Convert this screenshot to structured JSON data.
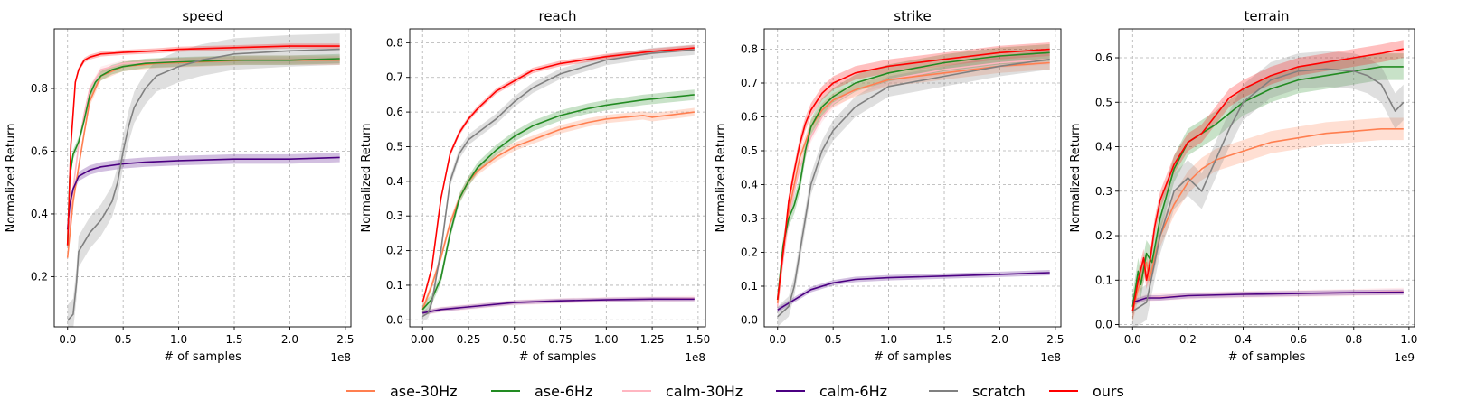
{
  "colors": {
    "ase-30Hz": "#ff7f50",
    "ase-6Hz": "#228b22",
    "calm-30Hz": "#ffb6c1",
    "calm-6Hz": "#4b0082",
    "scratch": "#808080",
    "ours": "#ff0000"
  },
  "legend": [
    "ase-30Hz",
    "ase-6Hz",
    "calm-30Hz",
    "calm-6Hz",
    "scratch",
    "ours"
  ],
  "chart_data": [
    {
      "type": "line",
      "title": "speed",
      "xlabel": "# of samples",
      "ylabel": "Normalized Return",
      "x_multiplier": "1e8",
      "xlim": [
        -0.12,
        2.55
      ],
      "ylim": [
        0.04,
        0.99
      ],
      "xticks": [
        0.0,
        0.5,
        1.0,
        1.5,
        2.0,
        2.5
      ],
      "xtick_labels": [
        "0.0",
        "0.5",
        "1.0",
        "1.5",
        "2.0",
        "2.5"
      ],
      "yticks": [
        0.2,
        0.4,
        0.6,
        0.8
      ],
      "ytick_labels": [
        "0.2",
        "0.4",
        "0.6",
        "0.8"
      ],
      "grid": true,
      "series": [
        {
          "name": "calm-30Hz",
          "band": 0.01,
          "x": [
            0,
            0.05,
            0.1,
            0.15,
            0.2,
            0.3,
            0.5,
            0.8,
            1.2,
            1.6,
            2.0,
            2.45
          ],
          "y": [
            0.3,
            0.48,
            0.62,
            0.72,
            0.8,
            0.86,
            0.88,
            0.885,
            0.89,
            0.89,
            0.89,
            0.89
          ]
        },
        {
          "name": "ase-30Hz",
          "band": 0.015,
          "x": [
            0,
            0.05,
            0.1,
            0.15,
            0.2,
            0.3,
            0.5,
            0.8,
            1.2,
            1.6,
            2.0,
            2.45
          ],
          "y": [
            0.26,
            0.44,
            0.55,
            0.66,
            0.76,
            0.84,
            0.87,
            0.88,
            0.885,
            0.89,
            0.89,
            0.89
          ]
        },
        {
          "name": "ase-6Hz",
          "band": 0.015,
          "x": [
            0,
            0.02,
            0.05,
            0.1,
            0.15,
            0.2,
            0.25,
            0.3,
            0.4,
            0.5,
            0.7,
            1.0,
            1.5,
            2.0,
            2.45
          ],
          "y": [
            0.3,
            0.52,
            0.59,
            0.63,
            0.7,
            0.78,
            0.82,
            0.84,
            0.86,
            0.87,
            0.88,
            0.885,
            0.89,
            0.89,
            0.895
          ]
        },
        {
          "name": "calm-6Hz",
          "band": 0.015,
          "x": [
            0,
            0.02,
            0.05,
            0.1,
            0.2,
            0.3,
            0.5,
            0.7,
            1.0,
            1.5,
            2.0,
            2.45
          ],
          "y": [
            0.35,
            0.43,
            0.48,
            0.52,
            0.54,
            0.55,
            0.56,
            0.565,
            0.57,
            0.575,
            0.575,
            0.58
          ]
        },
        {
          "name": "scratch",
          "band": 0.05,
          "x": [
            0,
            0.05,
            0.08,
            0.1,
            0.15,
            0.2,
            0.3,
            0.4,
            0.45,
            0.5,
            0.55,
            0.6,
            0.7,
            0.8,
            1.0,
            1.2,
            1.5,
            2.0,
            2.45
          ],
          "y": [
            0.06,
            0.08,
            0.18,
            0.28,
            0.31,
            0.34,
            0.38,
            0.44,
            0.5,
            0.6,
            0.68,
            0.74,
            0.8,
            0.84,
            0.87,
            0.89,
            0.91,
            0.92,
            0.925
          ]
        },
        {
          "name": "ours",
          "band": 0.008,
          "x": [
            0,
            0.03,
            0.07,
            0.1,
            0.15,
            0.2,
            0.3,
            0.5,
            0.8,
            1.0,
            1.5,
            2.0,
            2.45
          ],
          "y": [
            0.3,
            0.62,
            0.82,
            0.86,
            0.89,
            0.9,
            0.91,
            0.915,
            0.92,
            0.925,
            0.93,
            0.935,
            0.935
          ]
        }
      ]
    },
    {
      "type": "line",
      "title": "reach",
      "xlabel": "# of samples",
      "ylabel": "Normalized Return",
      "x_multiplier": "1e8",
      "xlim": [
        -0.07,
        1.54
      ],
      "ylim": [
        -0.02,
        0.84
      ],
      "xticks": [
        0.0,
        0.25,
        0.5,
        0.75,
        1.0,
        1.25,
        1.5
      ],
      "xtick_labels": [
        "0.00",
        "0.25",
        "0.50",
        "0.75",
        "1.00",
        "1.25",
        "1.50"
      ],
      "yticks": [
        0.0,
        0.1,
        0.2,
        0.3,
        0.4,
        0.5,
        0.6,
        0.7,
        0.8
      ],
      "ytick_labels": [
        "0.0",
        "0.1",
        "0.2",
        "0.3",
        "0.4",
        "0.5",
        "0.6",
        "0.7",
        "0.8"
      ],
      "grid": true,
      "series": [
        {
          "name": "calm-30Hz",
          "band": 0.008,
          "x": [
            0,
            0.1,
            0.3,
            0.5,
            0.75,
            1.0,
            1.25,
            1.48
          ],
          "y": [
            0.02,
            0.03,
            0.04,
            0.05,
            0.055,
            0.058,
            0.06,
            0.062
          ]
        },
        {
          "name": "ase-30Hz",
          "band": 0.012,
          "x": [
            0,
            0.05,
            0.1,
            0.15,
            0.2,
            0.25,
            0.3,
            0.4,
            0.5,
            0.6,
            0.75,
            0.9,
            1.0,
            1.2,
            1.25,
            1.48
          ],
          "y": [
            0.03,
            0.1,
            0.18,
            0.28,
            0.35,
            0.4,
            0.43,
            0.47,
            0.5,
            0.52,
            0.55,
            0.57,
            0.58,
            0.59,
            0.585,
            0.6
          ]
        },
        {
          "name": "ase-6Hz",
          "band": 0.015,
          "x": [
            0,
            0.05,
            0.1,
            0.15,
            0.2,
            0.25,
            0.3,
            0.4,
            0.5,
            0.6,
            0.75,
            0.9,
            1.0,
            1.2,
            1.48
          ],
          "y": [
            0.03,
            0.06,
            0.12,
            0.25,
            0.35,
            0.4,
            0.44,
            0.49,
            0.53,
            0.56,
            0.59,
            0.61,
            0.62,
            0.635,
            0.65
          ]
        },
        {
          "name": "calm-6Hz",
          "band": 0.006,
          "x": [
            0,
            0.1,
            0.3,
            0.5,
            0.75,
            1.0,
            1.25,
            1.48
          ],
          "y": [
            0.02,
            0.03,
            0.04,
            0.05,
            0.055,
            0.058,
            0.06,
            0.06
          ]
        },
        {
          "name": "scratch",
          "band": 0.015,
          "x": [
            0,
            0.03,
            0.05,
            0.1,
            0.15,
            0.2,
            0.25,
            0.3,
            0.4,
            0.5,
            0.6,
            0.75,
            1.0,
            1.25,
            1.48
          ],
          "y": [
            0.01,
            0.02,
            0.05,
            0.2,
            0.4,
            0.48,
            0.52,
            0.54,
            0.58,
            0.63,
            0.67,
            0.71,
            0.75,
            0.77,
            0.78
          ]
        },
        {
          "name": "ours",
          "band": 0.008,
          "x": [
            0,
            0.05,
            0.1,
            0.15,
            0.2,
            0.25,
            0.3,
            0.4,
            0.5,
            0.6,
            0.75,
            1.0,
            1.25,
            1.48
          ],
          "y": [
            0.05,
            0.15,
            0.35,
            0.48,
            0.54,
            0.58,
            0.61,
            0.66,
            0.69,
            0.72,
            0.74,
            0.76,
            0.775,
            0.785
          ]
        }
      ]
    },
    {
      "type": "line",
      "title": "strike",
      "xlabel": "# of samples",
      "ylabel": "Normalized Return",
      "x_multiplier": "1e8",
      "xlim": [
        -0.12,
        2.55
      ],
      "ylim": [
        -0.02,
        0.86
      ],
      "xticks": [
        0.0,
        0.5,
        1.0,
        1.5,
        2.0,
        2.5
      ],
      "xtick_labels": [
        "0.0",
        "0.5",
        "1.0",
        "1.5",
        "2.0",
        "2.5"
      ],
      "yticks": [
        0.0,
        0.1,
        0.2,
        0.3,
        0.4,
        0.5,
        0.6,
        0.7,
        0.8
      ],
      "ytick_labels": [
        "0.0",
        "0.1",
        "0.2",
        "0.3",
        "0.4",
        "0.5",
        "0.6",
        "0.7",
        "0.8"
      ],
      "grid": true,
      "series": [
        {
          "name": "calm-30Hz",
          "band": 0.015,
          "x": [
            0,
            0.05,
            0.1,
            0.15,
            0.2,
            0.3,
            0.4,
            0.5,
            0.7,
            1.0,
            1.5,
            2.0,
            2.45
          ],
          "y": [
            0.04,
            0.18,
            0.3,
            0.38,
            0.45,
            0.54,
            0.6,
            0.64,
            0.68,
            0.71,
            0.74,
            0.76,
            0.77
          ]
        },
        {
          "name": "ase-30Hz",
          "band": 0.02,
          "x": [
            0,
            0.05,
            0.1,
            0.15,
            0.2,
            0.3,
            0.4,
            0.5,
            0.7,
            1.0,
            1.5,
            2.0,
            2.45
          ],
          "y": [
            0.05,
            0.2,
            0.32,
            0.4,
            0.48,
            0.57,
            0.62,
            0.65,
            0.68,
            0.71,
            0.73,
            0.75,
            0.76
          ]
        },
        {
          "name": "ase-6Hz",
          "band": 0.025,
          "x": [
            0,
            0.05,
            0.1,
            0.15,
            0.2,
            0.25,
            0.3,
            0.4,
            0.5,
            0.7,
            1.0,
            1.5,
            2.0,
            2.45
          ],
          "y": [
            0.06,
            0.22,
            0.3,
            0.34,
            0.4,
            0.5,
            0.57,
            0.63,
            0.66,
            0.7,
            0.73,
            0.76,
            0.78,
            0.79
          ]
        },
        {
          "name": "calm-6Hz",
          "band": 0.008,
          "x": [
            0,
            0.1,
            0.2,
            0.3,
            0.5,
            0.7,
            1.0,
            1.5,
            2.0,
            2.45
          ],
          "y": [
            0.03,
            0.05,
            0.07,
            0.09,
            0.11,
            0.12,
            0.125,
            0.13,
            0.135,
            0.14
          ]
        },
        {
          "name": "scratch",
          "band": 0.03,
          "x": [
            0,
            0.1,
            0.15,
            0.2,
            0.25,
            0.3,
            0.4,
            0.5,
            0.7,
            1.0,
            1.5,
            2.0,
            2.45
          ],
          "y": [
            0.01,
            0.04,
            0.1,
            0.2,
            0.3,
            0.4,
            0.5,
            0.56,
            0.63,
            0.69,
            0.72,
            0.75,
            0.77
          ]
        },
        {
          "name": "ours",
          "band": 0.02,
          "x": [
            0,
            0.05,
            0.1,
            0.15,
            0.2,
            0.25,
            0.3,
            0.4,
            0.5,
            0.7,
            1.0,
            1.5,
            2.0,
            2.45
          ],
          "y": [
            0.06,
            0.2,
            0.35,
            0.44,
            0.52,
            0.58,
            0.62,
            0.67,
            0.7,
            0.73,
            0.75,
            0.77,
            0.79,
            0.8
          ]
        }
      ]
    },
    {
      "type": "line",
      "title": "terrain",
      "xlabel": "# of samples",
      "ylabel": "Normalized Return",
      "x_multiplier": "1e9",
      "xlim": [
        -0.05,
        1.02
      ],
      "ylim": [
        -0.005,
        0.665
      ],
      "xticks": [
        0.0,
        0.2,
        0.4,
        0.6,
        0.8,
        1.0
      ],
      "xtick_labels": [
        "0.0",
        "0.2",
        "0.4",
        "0.6",
        "0.8",
        "1.0"
      ],
      "yticks": [
        0.0,
        0.1,
        0.2,
        0.3,
        0.4,
        0.5,
        0.6
      ],
      "ytick_labels": [
        "0.0",
        "0.1",
        "0.2",
        "0.3",
        "0.4",
        "0.5",
        "0.6"
      ],
      "grid": true,
      "series": [
        {
          "name": "calm-30Hz",
          "band": 0.008,
          "x": [
            0,
            0.05,
            0.1,
            0.2,
            0.4,
            0.6,
            0.8,
            0.98
          ],
          "y": [
            0.05,
            0.06,
            0.062,
            0.065,
            0.068,
            0.07,
            0.072,
            0.075
          ]
        },
        {
          "name": "ase-30Hz",
          "band": 0.025,
          "x": [
            0,
            0.02,
            0.04,
            0.05,
            0.06,
            0.08,
            0.1,
            0.15,
            0.2,
            0.25,
            0.3,
            0.4,
            0.5,
            0.6,
            0.7,
            0.8,
            0.9,
            0.98
          ],
          "y": [
            0.03,
            0.08,
            0.12,
            0.14,
            0.1,
            0.15,
            0.2,
            0.27,
            0.32,
            0.35,
            0.37,
            0.39,
            0.41,
            0.42,
            0.43,
            0.435,
            0.44,
            0.44
          ]
        },
        {
          "name": "ase-6Hz",
          "band": 0.03,
          "x": [
            0,
            0.02,
            0.03,
            0.05,
            0.07,
            0.1,
            0.15,
            0.2,
            0.25,
            0.3,
            0.4,
            0.5,
            0.6,
            0.7,
            0.8,
            0.9,
            0.98
          ],
          "y": [
            0.04,
            0.12,
            0.09,
            0.16,
            0.14,
            0.24,
            0.35,
            0.41,
            0.43,
            0.45,
            0.5,
            0.53,
            0.55,
            0.56,
            0.57,
            0.58,
            0.58
          ]
        },
        {
          "name": "calm-6Hz",
          "band": 0.006,
          "x": [
            0,
            0.05,
            0.1,
            0.2,
            0.4,
            0.6,
            0.8,
            0.98
          ],
          "y": [
            0.05,
            0.06,
            0.06,
            0.065,
            0.068,
            0.07,
            0.072,
            0.073
          ]
        },
        {
          "name": "scratch",
          "band": 0.04,
          "x": [
            0,
            0.05,
            0.1,
            0.15,
            0.2,
            0.25,
            0.3,
            0.35,
            0.4,
            0.5,
            0.6,
            0.7,
            0.8,
            0.85,
            0.9,
            0.95,
            0.98
          ],
          "y": [
            0.03,
            0.05,
            0.2,
            0.3,
            0.33,
            0.3,
            0.37,
            0.44,
            0.5,
            0.55,
            0.57,
            0.575,
            0.57,
            0.56,
            0.54,
            0.48,
            0.5
          ]
        },
        {
          "name": "ours",
          "band": 0.02,
          "x": [
            0,
            0.02,
            0.04,
            0.05,
            0.06,
            0.08,
            0.1,
            0.15,
            0.2,
            0.25,
            0.3,
            0.35,
            0.4,
            0.5,
            0.6,
            0.7,
            0.8,
            0.9,
            0.98
          ],
          "y": [
            0.03,
            0.1,
            0.15,
            0.1,
            0.13,
            0.22,
            0.28,
            0.36,
            0.41,
            0.43,
            0.47,
            0.51,
            0.53,
            0.56,
            0.58,
            0.59,
            0.6,
            0.61,
            0.62
          ]
        }
      ]
    }
  ]
}
